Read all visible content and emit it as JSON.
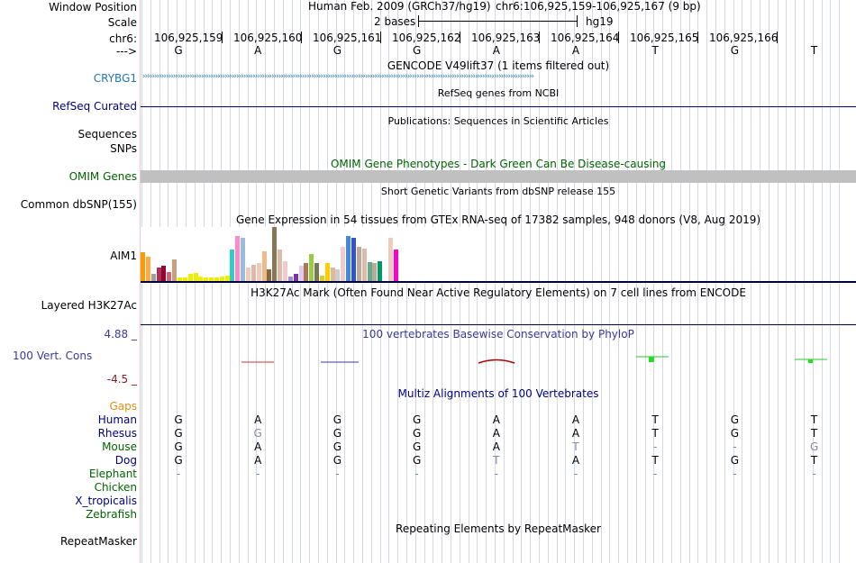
{
  "colors": {
    "link_blue": "#1f77b4",
    "navy": "#000080",
    "dark_green": "#006400",
    "omim_gray": "#c0c0c0",
    "gap_orange": "#e09010",
    "conservation_low": "#8b1a1a",
    "conservation_high": "#3a3a9a"
  },
  "header": {
    "window_position_label": "Window Position",
    "assembly": "Human Feb. 2009 (GRCh37/hg19)",
    "position": "chr6:106,925,159-106,925,167 (9 bp)",
    "scale_label": "Scale",
    "scale_text": "2 bases",
    "scale_db": "hg19",
    "chrom_label": "chr6:",
    "coordinates": [
      "106,925,159",
      "106,925,160",
      "106,925,161",
      "106,925,162",
      "106,925,163",
      "106,925,164",
      "106,925,165",
      "106,925,166"
    ],
    "strand_label": "--->",
    "bases": [
      "G",
      "A",
      "G",
      "G",
      "A",
      "A",
      "T",
      "G",
      "T"
    ]
  },
  "tracks": {
    "gencode": {
      "title": "GENCODE V49lift37 (1 items filtered out)",
      "label": "CRYBG1"
    },
    "refseq": {
      "title": "RefSeq genes from NCBI",
      "label": "RefSeq Curated"
    },
    "publications": {
      "title": "Publications: Sequences in Scientific Articles",
      "label1": "Sequences",
      "label2": "SNPs"
    },
    "omim": {
      "title": "OMIM Gene Phenotypes - Dark Green Can Be Disease-causing",
      "label": "OMIM Genes"
    },
    "dbsnp": {
      "title": "Short Genetic Variants from dbSNP release 155",
      "label": "Common dbSNP(155)"
    },
    "gtex": {
      "title": "Gene Expression in 54 tissues from GTEx RNA-seq of 17382 samples, 948 donors (V8, Aug 2019)",
      "label": "AIM1",
      "bars": [
        {
          "value": 32,
          "color": "#ff9900"
        },
        {
          "value": 27,
          "color": "#ffaa44"
        },
        {
          "value": 8,
          "color": "#a0a0a0"
        },
        {
          "value": 15,
          "color": "#aa3355"
        },
        {
          "value": 17,
          "color": "#990033"
        },
        {
          "value": 10,
          "color": "#cc6677"
        },
        {
          "value": 24,
          "color": "#c8a080"
        },
        {
          "value": 4,
          "color": "#eeee00"
        },
        {
          "value": 4,
          "color": "#eeee00"
        },
        {
          "value": 8,
          "color": "#eeee00"
        },
        {
          "value": 9,
          "color": "#eeee00"
        },
        {
          "value": 5,
          "color": "#eeee00"
        },
        {
          "value": 4,
          "color": "#eeee00"
        },
        {
          "value": 4,
          "color": "#eeee00"
        },
        {
          "value": 4,
          "color": "#eeee00"
        },
        {
          "value": 5,
          "color": "#eeee00"
        },
        {
          "value": 6,
          "color": "#eeee00"
        },
        {
          "value": 35,
          "color": "#33cccc"
        },
        {
          "value": 50,
          "color": "#ff88cc"
        },
        {
          "value": 48,
          "color": "#99bbdd"
        },
        {
          "value": 15,
          "color": "#eeccbb"
        },
        {
          "value": 18,
          "color": "#ddbbaa"
        },
        {
          "value": 20,
          "color": "#eeccbb"
        },
        {
          "value": 33,
          "color": "#eebb88"
        },
        {
          "value": 13,
          "color": "#886644"
        },
        {
          "value": 60,
          "color": "#887755"
        },
        {
          "value": 35,
          "color": "#ddbbaa"
        },
        {
          "value": 22,
          "color": "#eecccc"
        },
        {
          "value": 5,
          "color": "#aa88cc"
        },
        {
          "value": 8,
          "color": "#7733aa"
        },
        {
          "value": 17,
          "color": "#ddccee"
        },
        {
          "value": 20,
          "color": "#aa7755"
        },
        {
          "value": 30,
          "color": "#99cc44"
        },
        {
          "value": 20,
          "color": "#777755"
        },
        {
          "value": 6,
          "color": "#ddcc22"
        },
        {
          "value": 20,
          "color": "#ffcc00"
        },
        {
          "value": 15,
          "color": "#ddbb99"
        },
        {
          "value": 13,
          "color": "#cccccc"
        },
        {
          "value": 38,
          "color": "#eecccc"
        },
        {
          "value": 50,
          "color": "#4488dd"
        },
        {
          "value": 48,
          "color": "#3355cc"
        },
        {
          "value": 38,
          "color": "#bbaa99"
        },
        {
          "value": 36,
          "color": "#ddbbaa"
        },
        {
          "value": 21,
          "color": "#66aa88"
        },
        {
          "value": 20,
          "color": "#bbaa99"
        },
        {
          "value": 22,
          "color": "#009966"
        },
        {
          "value": 12,
          "color": "#ffffff"
        },
        {
          "value": 48,
          "color": "#eeccbb"
        },
        {
          "value": 35,
          "color": "#ff00cc"
        }
      ]
    },
    "h3k27ac": {
      "title": "H3K27Ac Mark (Often Found Near Active Regulatory Elements) on 7 cell lines from ENCODE",
      "label": "Layered H3K27Ac"
    },
    "phylop": {
      "title": "100 vertebrates Basewise Conservation by PhyloP",
      "label": "100 Vert. Cons",
      "max_label": "4.88 _",
      "min_label": "-4.5 _"
    },
    "multiz": {
      "title": "Multiz Alignments of 100 Vertebrates",
      "rows": [
        {
          "name": "Gaps",
          "bases": [
            "",
            "",
            "",
            "",
            "",
            "",
            "",
            "",
            ""
          ]
        },
        {
          "name": "Human",
          "bases": [
            "G",
            "A",
            "G",
            "G",
            "A",
            "A",
            "T",
            "G",
            "T"
          ]
        },
        {
          "name": "Rhesus",
          "bases": [
            "G",
            "G",
            "G",
            "G",
            "A",
            "A",
            "T",
            "G",
            "T"
          ]
        },
        {
          "name": "Mouse",
          "bases": [
            "G",
            "A",
            "G",
            "G",
            "A",
            "T",
            "-",
            "-",
            "G"
          ]
        },
        {
          "name": "Dog",
          "bases": [
            "G",
            "A",
            "G",
            "G",
            "T",
            "A",
            "T",
            "G",
            "T"
          ]
        },
        {
          "name": "Elephant",
          "bases": [
            "-",
            "-",
            "-",
            "-",
            "-",
            "-",
            "-",
            "-",
            "-"
          ]
        },
        {
          "name": "Chicken",
          "bases": [
            "",
            "",
            "",
            "",
            "",
            "",
            "",
            "",
            ""
          ]
        },
        {
          "name": "X_tropicalis",
          "bases": [
            "",
            "",
            "",
            "",
            "",
            "",
            "",
            "",
            ""
          ]
        },
        {
          "name": "Zebrafish",
          "bases": [
            "",
            "",
            "",
            "",
            "",
            "",
            "",
            "",
            ""
          ]
        }
      ]
    },
    "repeatmasker": {
      "title": "Repeating Elements by RepeatMasker",
      "label": "RepeatMasker"
    }
  }
}
